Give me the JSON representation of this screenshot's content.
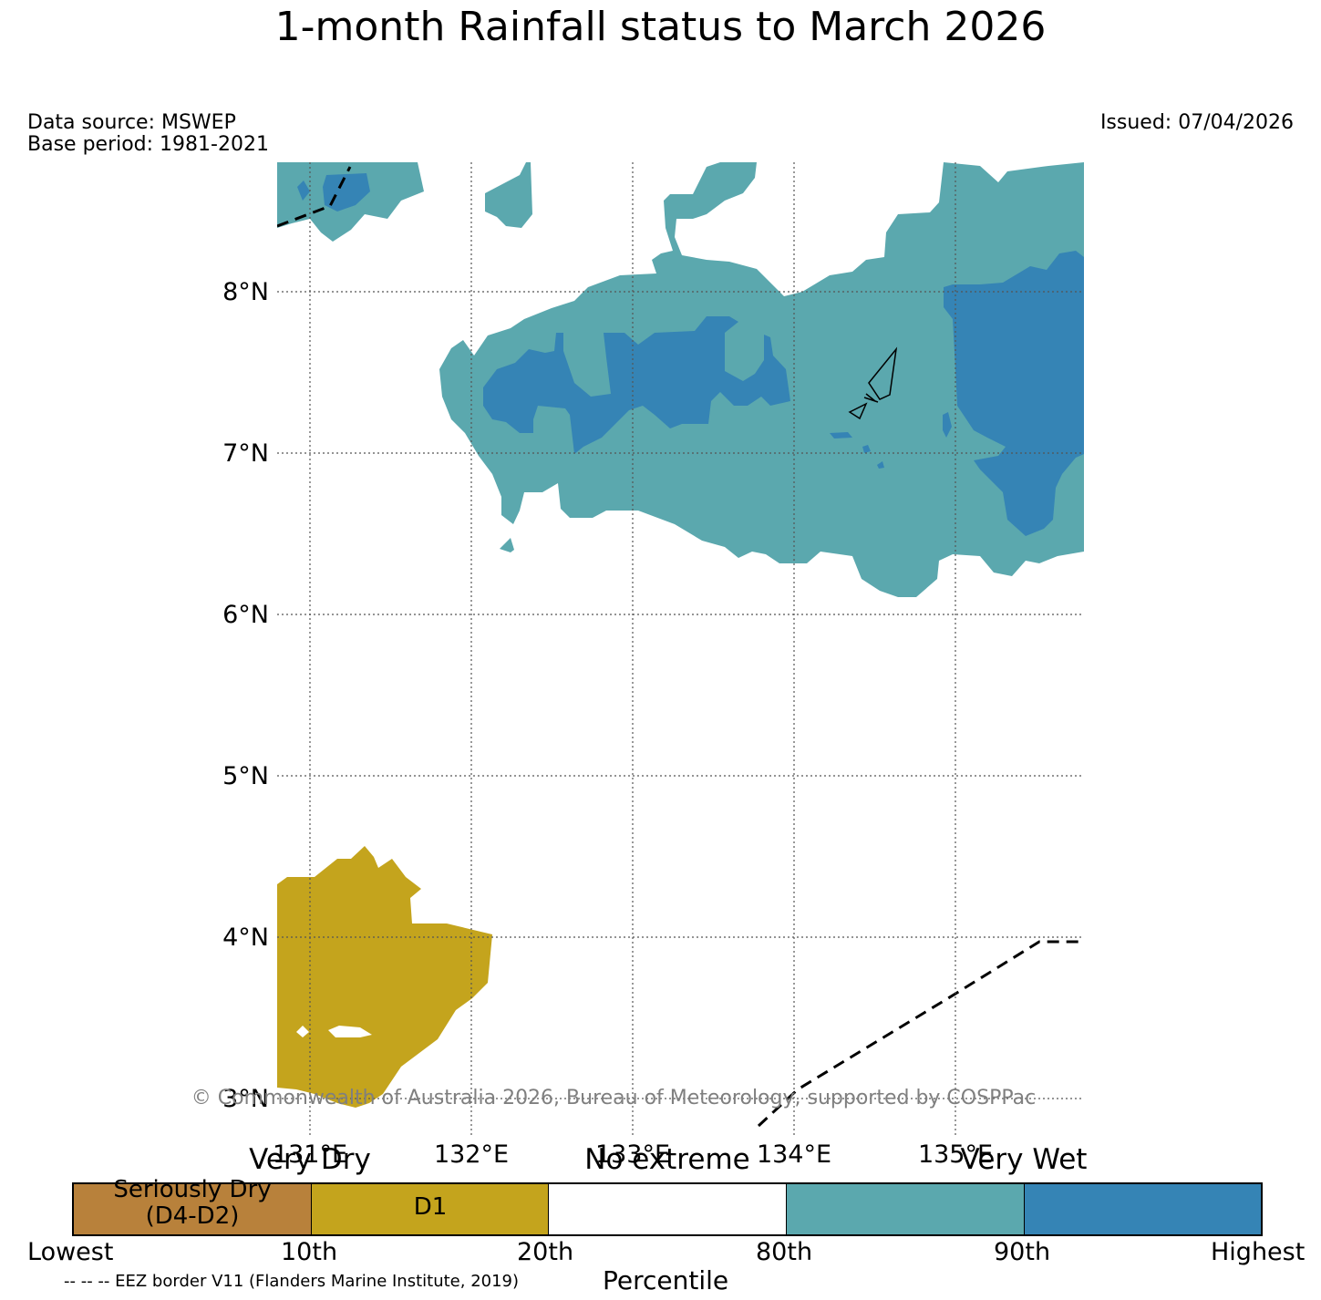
{
  "title": "1-month Rainfall status to March 2026",
  "data_source": "Data source: MSWEP",
  "base_period": "Base period: 1981-2021",
  "issued": "Issued: 07/04/2026",
  "map": {
    "lat_labels": [
      "8°N",
      "7°N",
      "6°N",
      "5°N",
      "4°N",
      "3°N"
    ],
    "lon_labels": [
      "131°E",
      "132°E",
      "133°E",
      "134°E",
      "135°E"
    ],
    "copyright": "© Commonwealth of Australia 2026, Bureau of Meteorology, supported by COSPPac",
    "colors": {
      "seriously_dry": "#b8813b",
      "d1": "#c4a41d",
      "no_extreme": "#ffffff",
      "very_wet_80": "#5ba8ae",
      "very_wet_90": "#3584b5"
    }
  },
  "legend": {
    "category_labels": {
      "very_dry": "Very Dry",
      "no_extreme": "No extreme",
      "very_wet": "Very Wet"
    },
    "boxes": [
      {
        "label_line1": "Seriously Dry",
        "label_line2": "(D4-D2)"
      },
      {
        "label_line1": "D1",
        "label_line2": ""
      },
      {
        "label_line1": "",
        "label_line2": ""
      },
      {
        "label_line1": "",
        "label_line2": ""
      },
      {
        "label_line1": "",
        "label_line2": ""
      }
    ],
    "ticks": [
      "Lowest",
      "10th",
      "20th",
      "80th",
      "90th",
      "Highest"
    ],
    "xlabel": "Percentile",
    "eez_note": "-- -- -- EEZ border V11 (Flanders Marine Institute, 2019)"
  }
}
